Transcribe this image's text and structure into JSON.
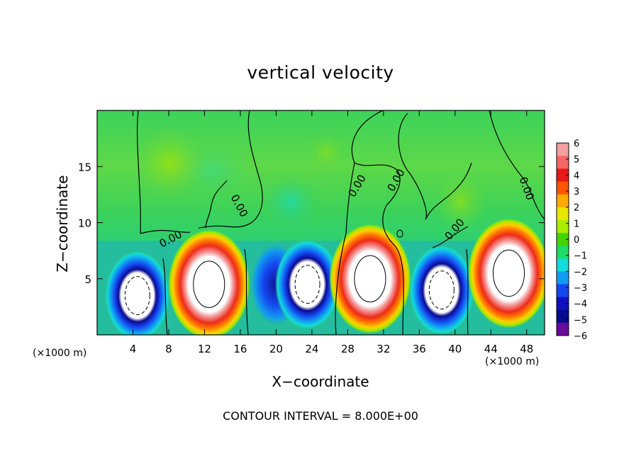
{
  "chart_data": {
    "type": "heatmap",
    "title": "vertical velocity",
    "xlabel": "X−coordinate",
    "ylabel": "Z−coordinate",
    "x_unit_label": "(×1000 m)",
    "xlim": [
      0,
      50
    ],
    "ylim": [
      0,
      20
    ],
    "x_ticks": [
      4,
      8,
      12,
      16,
      20,
      24,
      28,
      32,
      36,
      40,
      44,
      48
    ],
    "x_tick_labels": [
      "4",
      "8",
      "12",
      "16",
      "20",
      "24",
      "28",
      "32",
      "36",
      "40",
      "44",
      "48"
    ],
    "y_ticks": [
      5,
      10,
      15
    ],
    "y_tick_labels": [
      "5",
      "10",
      "15"
    ],
    "colorbar": {
      "min": -6,
      "max": 6,
      "tick_labels": [
        "6",
        "5",
        "4",
        "3",
        "2",
        "1",
        "0",
        "−1",
        "−2",
        "−3",
        "−4",
        "−5",
        "−6"
      ]
    },
    "contour_label": "0.00",
    "contour_interval_text": "CONTOUR INTERVAL = 8.000E+00",
    "features": [
      {
        "sign": "down",
        "x": 4.5,
        "z": 3.5,
        "strength": -7
      },
      {
        "sign": "up",
        "x": 12.5,
        "z": 4.5,
        "strength": 8
      },
      {
        "sign": "down",
        "x": 20.0,
        "z": 4.5,
        "strength": -4.8
      },
      {
        "sign": "down",
        "x": 23.5,
        "z": 4.5,
        "strength": -7
      },
      {
        "sign": "up",
        "x": 30.5,
        "z": 5.0,
        "strength": 8
      },
      {
        "sign": "down",
        "x": 38.5,
        "z": 4.0,
        "strength": -7
      },
      {
        "sign": "up",
        "x": 46.0,
        "z": 5.5,
        "strength": 8
      }
    ]
  },
  "colors": {
    "colorbar_stops": [
      "#f0a0a0",
      "#f66666",
      "#e81818",
      "#ff5500",
      "#ffaa00",
      "#e8e800",
      "#aaee00",
      "#44d400",
      "#1edc64",
      "#12dcdc",
      "#129cf0",
      "#1446f0",
      "#1010c0",
      "#0a0a8e",
      "#6a0a9a"
    ]
  }
}
